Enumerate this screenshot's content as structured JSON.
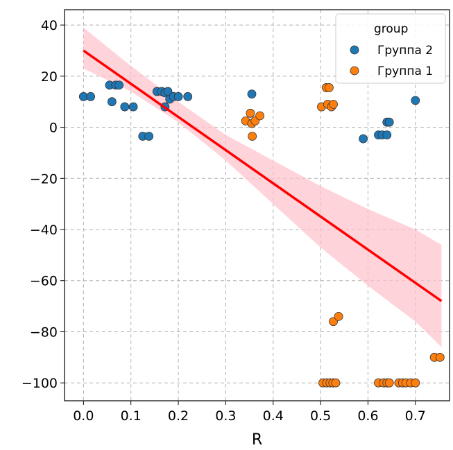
{
  "chart_data": {
    "type": "scatter",
    "xlabel": "R",
    "ylabel": "",
    "xlim": [
      -0.04,
      0.772
    ],
    "ylim": [
      -107,
      46
    ],
    "x_ticks": [
      0.0,
      0.1,
      0.2,
      0.3,
      0.4,
      0.5,
      0.6,
      0.7
    ],
    "x_tick_labels": [
      "0.0",
      "0.1",
      "0.2",
      "0.3",
      "0.4",
      "0.5",
      "0.6",
      "0.7"
    ],
    "y_ticks": [
      40,
      20,
      0,
      -20,
      -40,
      -60,
      -80,
      -100
    ],
    "y_tick_labels": [
      "40",
      "20",
      "0",
      "−20",
      "−40",
      "−60",
      "−80",
      "−100"
    ],
    "grid": true,
    "legend": {
      "title": "group",
      "placement": "top-right"
    },
    "series": [
      {
        "name": "Группа 2",
        "color": "#1f77b4",
        "points": [
          [
            0.0,
            12
          ],
          [
            0.015,
            12
          ],
          [
            0.055,
            16.5
          ],
          [
            0.06,
            10
          ],
          [
            0.068,
            16.5
          ],
          [
            0.075,
            16.5
          ],
          [
            0.087,
            8
          ],
          [
            0.105,
            8
          ],
          [
            0.125,
            -3.5
          ],
          [
            0.138,
            -3.5
          ],
          [
            0.155,
            14
          ],
          [
            0.165,
            14
          ],
          [
            0.172,
            13.5
          ],
          [
            0.172,
            8
          ],
          [
            0.178,
            14
          ],
          [
            0.182,
            11
          ],
          [
            0.19,
            12
          ],
          [
            0.2,
            12
          ],
          [
            0.22,
            12
          ],
          [
            0.355,
            13
          ],
          [
            0.59,
            -4.5
          ],
          [
            0.622,
            -3
          ],
          [
            0.63,
            -3
          ],
          [
            0.64,
            -3
          ],
          [
            0.64,
            2
          ],
          [
            0.645,
            2
          ],
          [
            0.7,
            10.5
          ]
        ]
      },
      {
        "name": "Группа 1",
        "color": "#ff7f0e",
        "points": [
          [
            0.342,
            2.5
          ],
          [
            0.352,
            5.5
          ],
          [
            0.355,
            1.5
          ],
          [
            0.356,
            -3.5
          ],
          [
            0.362,
            2.5
          ],
          [
            0.372,
            4.5
          ],
          [
            0.502,
            8
          ],
          [
            0.512,
            15.5
          ],
          [
            0.518,
            15.5
          ],
          [
            0.515,
            9
          ],
          [
            0.523,
            8
          ],
          [
            0.527,
            9
          ],
          [
            0.505,
            -100
          ],
          [
            0.513,
            -100
          ],
          [
            0.52,
            -100
          ],
          [
            0.526,
            -100
          ],
          [
            0.532,
            -100
          ],
          [
            0.527,
            -76
          ],
          [
            0.538,
            -74
          ],
          [
            0.622,
            -100
          ],
          [
            0.633,
            -100
          ],
          [
            0.64,
            -100
          ],
          [
            0.645,
            -100
          ],
          [
            0.665,
            -100
          ],
          [
            0.673,
            -100
          ],
          [
            0.68,
            -100
          ],
          [
            0.69,
            -100
          ],
          [
            0.7,
            -100
          ],
          [
            0.74,
            -90
          ],
          [
            0.752,
            -90
          ]
        ]
      }
    ],
    "regression": {
      "color": "#ff0000",
      "band_color": "#ffc0cb",
      "line": [
        [
          0.0,
          30
        ],
        [
          0.755,
          -68
        ]
      ],
      "band_upper": [
        [
          0.0,
          39
        ],
        [
          0.1,
          24
        ],
        [
          0.2,
          10
        ],
        [
          0.3,
          -3
        ],
        [
          0.4,
          -13
        ],
        [
          0.5,
          -23
        ],
        [
          0.6,
          -32
        ],
        [
          0.7,
          -40
        ],
        [
          0.755,
          -46
        ]
      ],
      "band_lower": [
        [
          0.0,
          23
        ],
        [
          0.1,
          14
        ],
        [
          0.2,
          2
        ],
        [
          0.3,
          -13
        ],
        [
          0.4,
          -30
        ],
        [
          0.5,
          -47
        ],
        [
          0.6,
          -62
        ],
        [
          0.7,
          -76
        ],
        [
          0.755,
          -86
        ]
      ]
    }
  }
}
